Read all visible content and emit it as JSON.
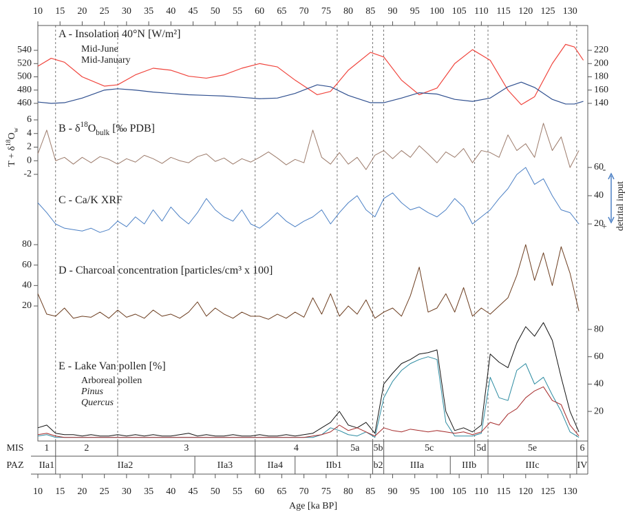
{
  "chart_data": {
    "type": "line",
    "xlabel": "Age [ka BP]",
    "xlim": [
      10,
      134
    ],
    "xticks": [
      10,
      15,
      20,
      25,
      30,
      35,
      40,
      45,
      50,
      55,
      60,
      65,
      70,
      75,
      80,
      85,
      90,
      95,
      100,
      105,
      110,
      115,
      120,
      125,
      130
    ],
    "panels": [
      {
        "title": [
          {
            "text": "A - Insolation 40°N [W/m²]"
          }
        ],
        "ylim": [
          450,
          555
        ],
        "yticks": [
          460,
          480,
          500,
          520,
          540
        ],
        "y2lim": [
          130,
          235
        ],
        "y2ticks": [
          140,
          160,
          180,
          200,
          220
        ],
        "x": [
          10,
          13,
          16,
          20,
          25,
          28,
          32,
          36,
          40,
          44,
          48,
          52,
          56,
          60,
          64,
          68,
          73,
          76,
          80,
          85,
          88,
          92,
          96,
          100,
          104,
          108,
          112,
          116,
          119,
          122,
          126,
          129,
          131,
          133
        ],
        "series": [
          {
            "name": "Mid-June",
            "color": "#f0443c",
            "axis": "y",
            "values": [
              516,
              528,
              522,
              500,
              486,
              488,
              503,
              513,
              510,
              501,
              498,
              503,
              513,
              520,
              515,
              495,
              473,
              478,
              510,
              537,
              530,
              495,
              473,
              483,
              520,
              541,
              525,
              480,
              458,
              470,
              520,
              549,
              545,
              525
            ]
          },
          {
            "name": "Mid-January",
            "color": "#2f4f8f",
            "axis": "y2",
            "values": [
              142,
              140,
              141,
              148,
              160,
              162,
              160,
              157,
              155,
              153,
              152,
              151,
              149,
              147,
              148,
              155,
              168,
              165,
              152,
              141,
              141,
              148,
              156,
              154,
              146,
              143,
              148,
              165,
              172,
              164,
              146,
              139,
              139,
              143
            ]
          }
        ]
      },
      {
        "title": [
          {
            "text": "B - δ"
          },
          {
            "text": "18",
            "shift": "sup"
          },
          {
            "text": "O"
          },
          {
            "text": "bulk",
            "shift": "sub"
          },
          {
            "text": " [‰ PDB]"
          }
        ],
        "ylabel": [
          {
            "text": "T + δ"
          },
          {
            "text": "18",
            "shift": "sup"
          },
          {
            "text": "O"
          },
          {
            "text": "w",
            "shift": "sub"
          }
        ],
        "ylim": [
          -3,
          7
        ],
        "yticks": [
          -2,
          0,
          2,
          4,
          6
        ],
        "x": [
          10,
          12,
          14,
          16,
          18,
          20,
          22,
          24,
          26,
          28,
          30,
          32,
          34,
          36,
          38,
          40,
          42,
          44,
          46,
          48,
          50,
          52,
          54,
          56,
          58,
          60,
          62,
          64,
          66,
          68,
          70,
          72,
          74,
          76,
          78,
          80,
          82,
          84,
          86,
          88,
          90,
          92,
          94,
          96,
          98,
          100,
          102,
          104,
          106,
          108,
          110,
          112,
          114,
          116,
          118,
          120,
          122,
          124,
          126,
          128,
          130,
          132
        ],
        "series": [
          {
            "color": "#9c7b6b",
            "axis": "y",
            "values": [
              1,
              4.5,
              0,
              0.5,
              -0.5,
              0.5,
              -0.3,
              0.6,
              0.2,
              -0.5,
              0.3,
              -0.2,
              0.8,
              0.3,
              -0.4,
              0.5,
              0,
              -0.3,
              0.6,
              1,
              -0.1,
              0.4,
              -0.5,
              0.3,
              -0.2,
              0.5,
              1.3,
              0.4,
              -0.6,
              0.2,
              -0.3,
              4.5,
              0.5,
              -0.5,
              1.2,
              -0.5,
              0.5,
              -1.3,
              0.8,
              1.5,
              0.3,
              1.5,
              0.5,
              2.2,
              1,
              -0.3,
              1.3,
              0.5,
              1.8,
              -0.3,
              1.5,
              1.2,
              0.5,
              3.8,
              1.5,
              2.5,
              0.5,
              5.5,
              1.5,
              3.5,
              -1,
              1.5
            ]
          }
        ]
      },
      {
        "title": [
          {
            "text": "C - Ca/K XRF"
          }
        ],
        "y2label": "detrital input",
        "y2label_ends": [
          "-",
          "+"
        ],
        "y2lim": [
          5,
          70
        ],
        "y2ticks": [
          20,
          40,
          60
        ],
        "x": [
          10,
          12,
          14,
          16,
          18,
          20,
          22,
          24,
          26,
          28,
          30,
          32,
          34,
          36,
          38,
          40,
          42,
          44,
          46,
          48,
          50,
          52,
          54,
          56,
          58,
          60,
          62,
          64,
          66,
          68,
          70,
          72,
          74,
          76,
          78,
          80,
          82,
          84,
          86,
          88,
          90,
          92,
          94,
          96,
          98,
          100,
          102,
          104,
          106,
          108,
          110,
          112,
          114,
          116,
          118,
          120,
          122,
          124,
          126,
          128,
          130,
          132
        ],
        "series": [
          {
            "color": "#4a7fc4",
            "axis": "y2",
            "values": [
              35,
              28,
              20,
              17,
              16,
              15,
              17,
              14,
              16,
              22,
              18,
              25,
              20,
              30,
              22,
              32,
              25,
              20,
              28,
              38,
              30,
              25,
              22,
              30,
              20,
              17,
              22,
              28,
              22,
              18,
              22,
              25,
              30,
              20,
              28,
              35,
              40,
              30,
              25,
              38,
              42,
              35,
              30,
              32,
              28,
              25,
              30,
              38,
              32,
              20,
              25,
              30,
              38,
              45,
              55,
              60,
              48,
              52,
              40,
              30,
              28,
              20
            ]
          }
        ]
      },
      {
        "title": [
          {
            "text": "D - Charcoal concentration [particles/cm³ x 100]"
          }
        ],
        "ylim": [
          0,
          85
        ],
        "yticks": [
          20,
          40,
          60,
          80
        ],
        "x": [
          10,
          12,
          14,
          16,
          18,
          20,
          22,
          24,
          26,
          28,
          30,
          32,
          34,
          36,
          38,
          40,
          42,
          44,
          46,
          48,
          50,
          52,
          54,
          56,
          58,
          60,
          62,
          64,
          66,
          68,
          70,
          72,
          74,
          76,
          78,
          80,
          82,
          84,
          86,
          88,
          90,
          92,
          94,
          96,
          98,
          100,
          102,
          104,
          106,
          108,
          110,
          112,
          114,
          116,
          118,
          120,
          122,
          124,
          126,
          128,
          130,
          132
        ],
        "series": [
          {
            "color": "#6b3c1e",
            "axis": "y",
            "values": [
              32,
              12,
              10,
              18,
              8,
              10,
              9,
              14,
              8,
              16,
              9,
              12,
              8,
              16,
              10,
              12,
              8,
              14,
              24,
              10,
              18,
              12,
              8,
              14,
              10,
              10,
              7,
              12,
              8,
              14,
              9,
              28,
              12,
              32,
              10,
              20,
              12,
              26,
              8,
              14,
              18,
              10,
              30,
              58,
              14,
              18,
              32,
              14,
              38,
              10,
              18,
              12,
              20,
              28,
              50,
              80,
              45,
              72,
              40,
              78,
              52,
              15
            ]
          }
        ]
      },
      {
        "title": [
          {
            "text": "E - Lake Van pollen [%]"
          }
        ],
        "y2lim": [
          0,
          90
        ],
        "y2ticks": [
          20,
          40,
          60,
          80
        ],
        "x": [
          10,
          12,
          14,
          16,
          18,
          20,
          22,
          24,
          26,
          28,
          30,
          32,
          34,
          36,
          38,
          40,
          42,
          44,
          46,
          48,
          50,
          52,
          54,
          56,
          58,
          60,
          62,
          64,
          66,
          68,
          70,
          72,
          74,
          76,
          78,
          80,
          82,
          84,
          86,
          88,
          90,
          92,
          94,
          96,
          98,
          100,
          102,
          104,
          106,
          108,
          110,
          112,
          114,
          116,
          118,
          120,
          122,
          124,
          126,
          128,
          130,
          132
        ],
        "series": [
          {
            "name": "Arboreal pollen",
            "color": "#111111",
            "axis": "y2",
            "italic": false,
            "values": [
              8,
              10,
              4,
              3,
              3,
              2,
              3,
              2,
              2,
              3,
              2,
              3,
              2,
              3,
              2,
              2,
              3,
              4,
              2,
              3,
              2,
              2,
              3,
              2,
              2,
              3,
              2,
              2,
              3,
              2,
              3,
              4,
              8,
              12,
              20,
              10,
              8,
              12,
              4,
              40,
              48,
              55,
              58,
              62,
              63,
              65,
              20,
              6,
              8,
              5,
              10,
              62,
              56,
              52,
              70,
              82,
              75,
              85,
              72,
              45,
              20,
              5
            ]
          },
          {
            "name": "Pinus",
            "color": "#2a8aa0",
            "axis": "y2",
            "italic": true,
            "values": [
              2,
              3,
              1,
              1,
              1,
              1,
              1,
              1,
              1,
              1,
              1,
              1,
              1,
              1,
              1,
              1,
              1,
              1,
              1,
              1,
              1,
              1,
              1,
              1,
              1,
              1,
              1,
              1,
              1,
              1,
              1,
              1,
              3,
              8,
              6,
              3,
              2,
              5,
              1,
              30,
              42,
              50,
              55,
              58,
              60,
              58,
              12,
              2,
              2,
              2,
              4,
              45,
              30,
              28,
              50,
              55,
              40,
              45,
              32,
              20,
              5,
              1
            ]
          },
          {
            "name": "Quercus",
            "color": "#a52a2a",
            "axis": "y2",
            "italic": true,
            "values": [
              3,
              4,
              2,
              1,
              1,
              1,
              1,
              1,
              1,
              1,
              1,
              1,
              1,
              1,
              1,
              1,
              1,
              1,
              1,
              1,
              1,
              1,
              1,
              1,
              1,
              1,
              1,
              1,
              1,
              1,
              1,
              2,
              3,
              5,
              10,
              6,
              8,
              5,
              2,
              8,
              6,
              5,
              7,
              6,
              5,
              6,
              5,
              4,
              5,
              3,
              5,
              12,
              10,
              18,
              22,
              30,
              35,
              38,
              28,
              25,
              10,
              2
            ]
          }
        ]
      }
    ],
    "mis": {
      "label": "MIS",
      "stages": [
        "1",
        "2",
        "3",
        "4",
        "5a",
        "5b",
        "5c",
        "5d",
        "5e",
        "6"
      ],
      "boundaries": [
        14,
        28,
        59,
        77.5,
        85.5,
        88,
        108.5,
        111.5,
        131.5
      ]
    },
    "paz": {
      "label": "PAZ",
      "zones": [
        "IIa1",
        "IIa2",
        "IIa3",
        "IIa4",
        "IIb1",
        "b2",
        "IIIa",
        "IIIb",
        "IIIc",
        "IV"
      ],
      "boundaries": [
        14,
        45.4,
        59,
        68,
        85.5,
        88,
        103,
        111.5,
        131.5
      ]
    }
  }
}
